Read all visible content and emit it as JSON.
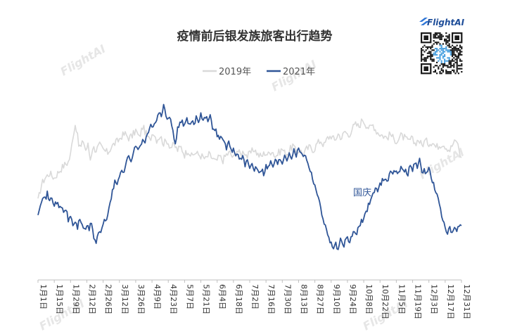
{
  "brand": {
    "name": "FlightAI",
    "qr_icon": "qr-code-icon",
    "watermark": "FlightAI"
  },
  "chart_data": {
    "type": "line",
    "title": "疫情前后银发族旅客出行趋势",
    "xlabel": "",
    "ylabel": "",
    "grid": false,
    "legend_position": "top-center",
    "x_ticks": [
      "1月1日",
      "1月15日",
      "1月29日",
      "2月12日",
      "2月26日",
      "3月12日",
      "3月26日",
      "4月9日",
      "4月23日",
      "5月7日",
      "5月21日",
      "6月4日",
      "6月18日",
      "7月2日",
      "7月16日",
      "7月30日",
      "8月13日",
      "8月27日",
      "9月10日",
      "9月24日",
      "10月8日",
      "10月22日",
      "11月5日",
      "11月19日",
      "12月3日",
      "12月17日",
      "12月31日"
    ],
    "series_keypoints_note": "",
    "series": [
      {
        "name": "2019年",
        "color": "#d9d9d9",
        "keypoints": [
          [
            0,
            30
          ],
          [
            3,
            48
          ],
          [
            6,
            55
          ],
          [
            10,
            60
          ],
          [
            14,
            55
          ],
          [
            18,
            62
          ],
          [
            22,
            68
          ],
          [
            26,
            72
          ],
          [
            28,
            80
          ],
          [
            30,
            100
          ],
          [
            32,
            112
          ],
          [
            33,
            108
          ],
          [
            35,
            90
          ],
          [
            37,
            88
          ],
          [
            39,
            95
          ],
          [
            41,
            85
          ],
          [
            43,
            90
          ],
          [
            45,
            75
          ],
          [
            47,
            88
          ],
          [
            50,
            85
          ],
          [
            53,
            90
          ],
          [
            56,
            85
          ],
          [
            60,
            82
          ],
          [
            63,
            88
          ],
          [
            66,
            92
          ],
          [
            69,
            95
          ],
          [
            72,
            100
          ],
          [
            75,
            102
          ],
          [
            78,
            98
          ],
          [
            81,
            100
          ],
          [
            84,
            106
          ],
          [
            87,
            98
          ],
          [
            90,
            110
          ],
          [
            93,
            102
          ],
          [
            96,
            95
          ],
          [
            99,
            105
          ],
          [
            102,
            96
          ],
          [
            105,
            100
          ],
          [
            108,
            92
          ],
          [
            111,
            95
          ],
          [
            114,
            88
          ],
          [
            117,
            90
          ],
          [
            120,
            85
          ],
          [
            123,
            88
          ],
          [
            126,
            80
          ],
          [
            129,
            85
          ],
          [
            132,
            78
          ],
          [
            135,
            82
          ],
          [
            138,
            80
          ],
          [
            141,
            78
          ],
          [
            144,
            75
          ],
          [
            147,
            80
          ],
          [
            150,
            76
          ],
          [
            153,
            72
          ],
          [
            156,
            78
          ],
          [
            159,
            74
          ],
          [
            162,
            80
          ],
          [
            165,
            82
          ],
          [
            168,
            76
          ],
          [
            171,
            85
          ],
          [
            174,
            80
          ],
          [
            177,
            84
          ],
          [
            180,
            78
          ],
          [
            183,
            82
          ],
          [
            186,
            86
          ],
          [
            189,
            80
          ],
          [
            192,
            78
          ],
          [
            195,
            82
          ],
          [
            198,
            80
          ],
          [
            201,
            85
          ],
          [
            204,
            78
          ],
          [
            207,
            82
          ],
          [
            210,
            86
          ],
          [
            213,
            80
          ],
          [
            216,
            84
          ],
          [
            219,
            90
          ],
          [
            222,
            82
          ],
          [
            225,
            85
          ],
          [
            228,
            80
          ],
          [
            231,
            86
          ],
          [
            234,
            88
          ],
          [
            237,
            85
          ],
          [
            240,
            92
          ],
          [
            243,
            95
          ],
          [
            246,
            90
          ],
          [
            249,
            98
          ],
          [
            252,
            100
          ],
          [
            255,
            95
          ],
          [
            258,
            102
          ],
          [
            261,
            98
          ],
          [
            264,
            105
          ],
          [
            267,
            100
          ],
          [
            270,
            108
          ],
          [
            273,
            112
          ],
          [
            276,
            110
          ],
          [
            279,
            118
          ],
          [
            282,
            112
          ],
          [
            285,
            108
          ],
          [
            288,
            112
          ],
          [
            291,
            105
          ],
          [
            294,
            102
          ],
          [
            297,
            100
          ],
          [
            300,
            98
          ],
          [
            303,
            102
          ],
          [
            306,
            96
          ],
          [
            309,
            95
          ],
          [
            312,
            100
          ],
          [
            315,
            98
          ],
          [
            318,
            94
          ],
          [
            321,
            97
          ],
          [
            324,
            92
          ],
          [
            327,
            96
          ],
          [
            330,
            90
          ],
          [
            333,
            95
          ],
          [
            336,
            92
          ],
          [
            339,
            94
          ],
          [
            342,
            88
          ],
          [
            345,
            90
          ],
          [
            348,
            92
          ],
          [
            351,
            88
          ],
          [
            354,
            85
          ],
          [
            357,
            92
          ],
          [
            360,
            95
          ],
          [
            362,
            85
          ],
          [
            364,
            75
          ]
        ]
      },
      {
        "name": "2021年",
        "color": "#2f5597",
        "keypoints": [
          [
            0,
            18
          ],
          [
            2,
            28
          ],
          [
            4,
            36
          ],
          [
            6,
            32
          ],
          [
            8,
            38
          ],
          [
            10,
            30
          ],
          [
            12,
            34
          ],
          [
            14,
            26
          ],
          [
            16,
            30
          ],
          [
            18,
            22
          ],
          [
            20,
            25
          ],
          [
            22,
            18
          ],
          [
            24,
            22
          ],
          [
            26,
            10
          ],
          [
            28,
            14
          ],
          [
            30,
            5
          ],
          [
            32,
            8
          ],
          [
            34,
            2
          ],
          [
            36,
            12
          ],
          [
            38,
            6
          ],
          [
            40,
            -2
          ],
          [
            42,
            4
          ],
          [
            44,
            0
          ],
          [
            46,
            8
          ],
          [
            48,
            -8
          ],
          [
            50,
            -15
          ],
          [
            52,
            -2
          ],
          [
            54,
            -5
          ],
          [
            56,
            6
          ],
          [
            58,
            10
          ],
          [
            60,
            15
          ],
          [
            62,
            30
          ],
          [
            64,
            40
          ],
          [
            66,
            50
          ],
          [
            68,
            48
          ],
          [
            70,
            58
          ],
          [
            72,
            65
          ],
          [
            74,
            62
          ],
          [
            76,
            72
          ],
          [
            78,
            78
          ],
          [
            80,
            74
          ],
          [
            82,
            82
          ],
          [
            84,
            88
          ],
          [
            86,
            86
          ],
          [
            88,
            92
          ],
          [
            90,
            96
          ],
          [
            92,
            94
          ],
          [
            94,
            100
          ],
          [
            96,
            108
          ],
          [
            98,
            112
          ],
          [
            100,
            110
          ],
          [
            102,
            118
          ],
          [
            104,
            126
          ],
          [
            106,
            118
          ],
          [
            108,
            132
          ],
          [
            110,
            124
          ],
          [
            112,
            116
          ],
          [
            114,
            118
          ],
          [
            116,
            104
          ],
          [
            118,
            92
          ],
          [
            120,
            108
          ],
          [
            122,
            112
          ],
          [
            124,
            116
          ],
          [
            126,
            110
          ],
          [
            128,
            118
          ],
          [
            130,
            110
          ],
          [
            132,
            116
          ],
          [
            134,
            112
          ],
          [
            136,
            120
          ],
          [
            138,
            116
          ],
          [
            140,
            124
          ],
          [
            142,
            118
          ],
          [
            144,
            122
          ],
          [
            146,
            116
          ],
          [
            148,
            120
          ],
          [
            150,
            110
          ],
          [
            152,
            108
          ],
          [
            154,
            102
          ],
          [
            156,
            96
          ],
          [
            158,
            100
          ],
          [
            160,
            92
          ],
          [
            162,
            88
          ],
          [
            164,
            92
          ],
          [
            166,
            84
          ],
          [
            168,
            86
          ],
          [
            170,
            78
          ],
          [
            172,
            82
          ],
          [
            174,
            74
          ],
          [
            176,
            78
          ],
          [
            178,
            68
          ],
          [
            180,
            72
          ],
          [
            182,
            66
          ],
          [
            184,
            70
          ],
          [
            186,
            64
          ],
          [
            188,
            68
          ],
          [
            190,
            62
          ],
          [
            192,
            65
          ],
          [
            194,
            60
          ],
          [
            196,
            68
          ],
          [
            198,
            66
          ],
          [
            200,
            72
          ],
          [
            202,
            68
          ],
          [
            204,
            74
          ],
          [
            206,
            70
          ],
          [
            208,
            76
          ],
          [
            210,
            72
          ],
          [
            212,
            80
          ],
          [
            214,
            76
          ],
          [
            216,
            82
          ],
          [
            218,
            78
          ],
          [
            220,
            84
          ],
          [
            222,
            80
          ],
          [
            224,
            86
          ],
          [
            226,
            84
          ],
          [
            228,
            80
          ],
          [
            230,
            78
          ],
          [
            232,
            72
          ],
          [
            234,
            64
          ],
          [
            236,
            55
          ],
          [
            238,
            48
          ],
          [
            240,
            38
          ],
          [
            242,
            28
          ],
          [
            244,
            18
          ],
          [
            246,
            8
          ],
          [
            248,
            -2
          ],
          [
            250,
            -8
          ],
          [
            252,
            -15
          ],
          [
            254,
            -20
          ],
          [
            256,
            -16
          ],
          [
            258,
            -22
          ],
          [
            260,
            -12
          ],
          [
            262,
            -18
          ],
          [
            264,
            -14
          ],
          [
            266,
            -10
          ],
          [
            268,
            -14
          ],
          [
            270,
            -6
          ],
          [
            272,
            -2
          ],
          [
            274,
            -4
          ],
          [
            276,
            2
          ],
          [
            278,
            8
          ],
          [
            280,
            12
          ],
          [
            282,
            18
          ],
          [
            284,
            26
          ],
          [
            286,
            32
          ],
          [
            288,
            38
          ],
          [
            290,
            45
          ],
          [
            292,
            40
          ],
          [
            294,
            48
          ],
          [
            296,
            52
          ],
          [
            298,
            56
          ],
          [
            300,
            52
          ],
          [
            302,
            58
          ],
          [
            304,
            62
          ],
          [
            306,
            60
          ],
          [
            308,
            64
          ],
          [
            310,
            60
          ],
          [
            312,
            66
          ],
          [
            314,
            62
          ],
          [
            316,
            64
          ],
          [
            318,
            60
          ],
          [
            320,
            68
          ],
          [
            322,
            64
          ],
          [
            324,
            72
          ],
          [
            326,
            68
          ],
          [
            328,
            74
          ],
          [
            330,
            60
          ],
          [
            332,
            65
          ],
          [
            334,
            58
          ],
          [
            336,
            66
          ],
          [
            338,
            56
          ],
          [
            340,
            48
          ],
          [
            342,
            40
          ],
          [
            344,
            32
          ],
          [
            346,
            20
          ],
          [
            348,
            10
          ],
          [
            350,
            4
          ],
          [
            352,
            -4
          ],
          [
            354,
            0
          ],
          [
            356,
            -6
          ],
          [
            358,
            2
          ],
          [
            360,
            -2
          ],
          [
            362,
            4
          ],
          [
            364,
            2
          ]
        ]
      }
    ],
    "annotations": [
      {
        "text": "国庆"
      }
    ],
    "x_range": [
      0,
      364
    ],
    "y_range": [
      -30,
      140
    ]
  }
}
